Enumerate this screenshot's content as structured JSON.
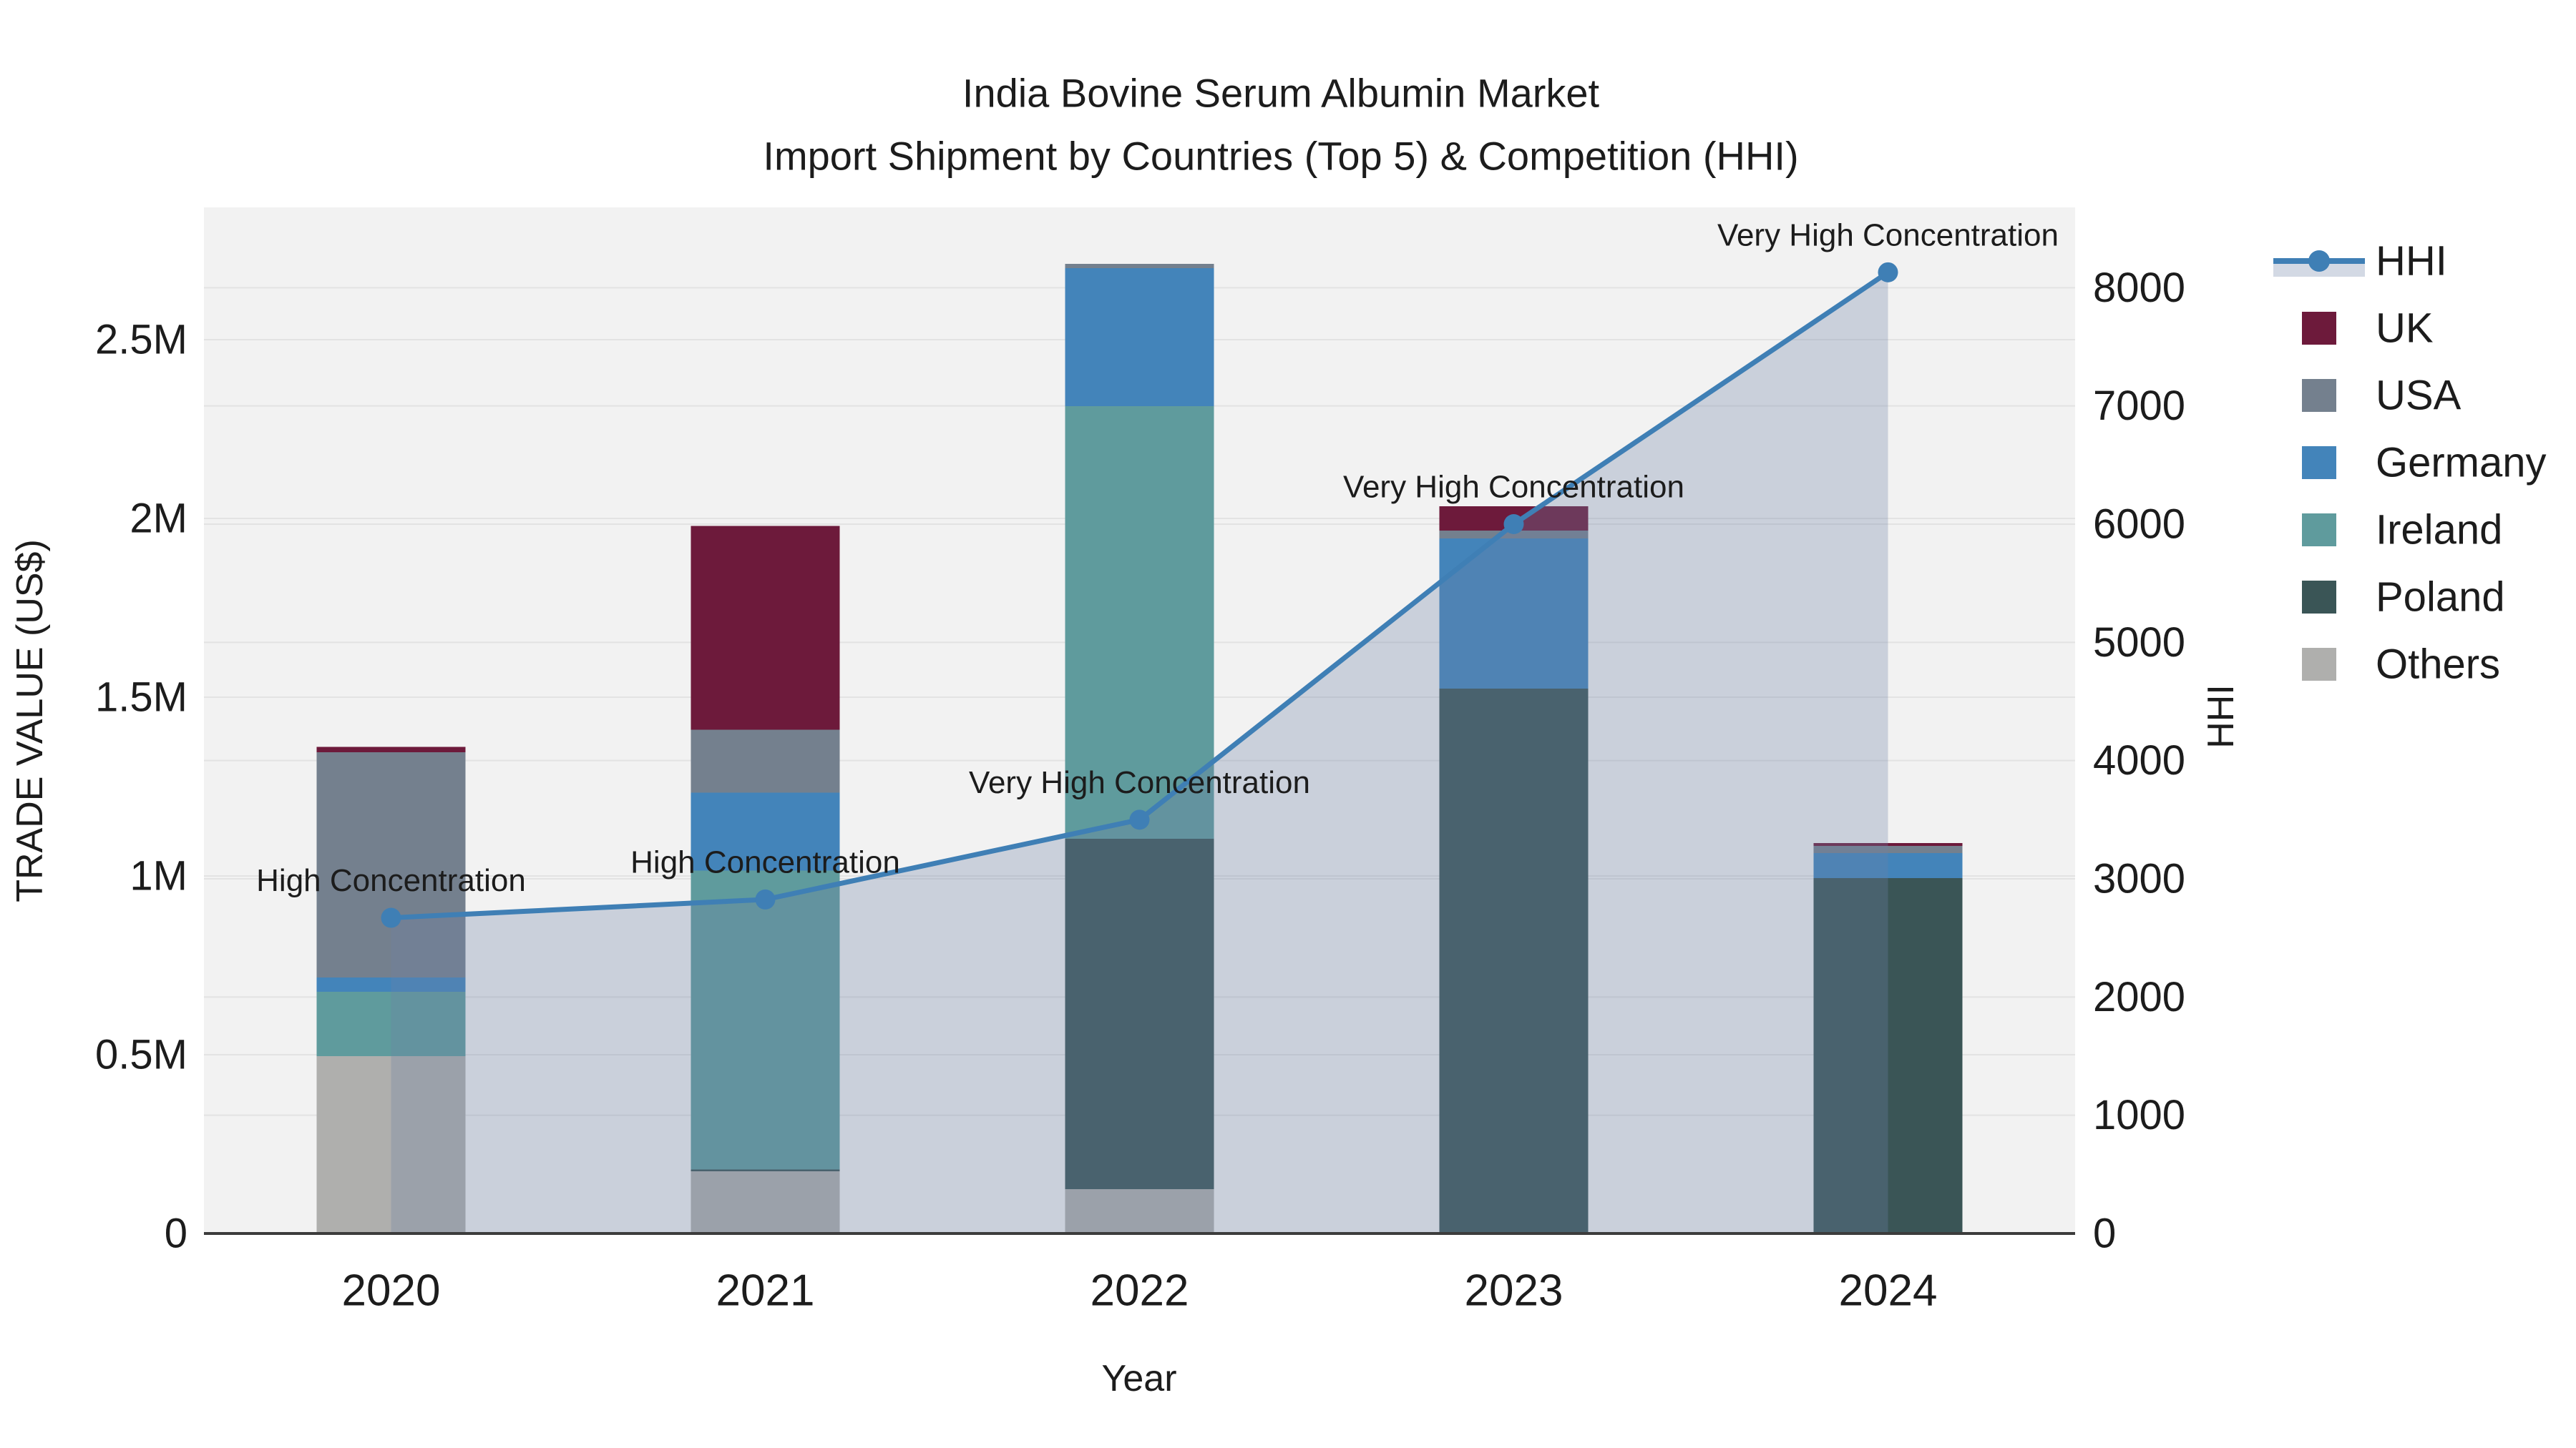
{
  "chart_data": {
    "type": "bar+line",
    "title_line1": "India Bovine Serum Albumin Market",
    "title_line2": "Import Shipment by Countries (Top 5) & Competition (HHI)",
    "xlabel": "Year",
    "ylabel_left": "TRADE VALUE (US$)",
    "ylabel_right": "HHI",
    "categories": [
      "2020",
      "2021",
      "2022",
      "2023",
      "2024"
    ],
    "bar_totals_musd": [
      1.36,
      1.98,
      2.71,
      2.03,
      1.09
    ],
    "series": [
      {
        "name": "UK",
        "color": "#6d1a3b",
        "values": [
          0.015,
          0.57,
          0.0,
          0.068,
          0.008
        ]
      },
      {
        "name": "USA",
        "color": "#74808e",
        "values": [
          0.63,
          0.176,
          0.012,
          0.022,
          0.02
        ]
      },
      {
        "name": "Germany",
        "color": "#4384ba",
        "values": [
          0.04,
          0.218,
          0.386,
          0.42,
          0.07
        ]
      },
      {
        "name": "Ireland",
        "color": "#5f9b9d",
        "values": [
          0.18,
          0.836,
          1.21,
          0.0,
          0.0
        ]
      },
      {
        "name": "Poland",
        "color": "#3a5556",
        "values": [
          0.0,
          0.005,
          0.98,
          1.524,
          0.994
        ]
      },
      {
        "name": "Others",
        "color": "#afafad",
        "values": [
          0.496,
          0.174,
          0.124,
          0.0,
          0.0
        ]
      }
    ],
    "stack_order_bottom_to_top": [
      "Others",
      "Poland",
      "Ireland",
      "Germany",
      "USA",
      "UK"
    ],
    "hhi_line": {
      "name": "HHI",
      "color": "#3f7fb5",
      "area_fill": "rgba(110,130,165,0.30)",
      "values": [
        2670,
        2825,
        3500,
        6000,
        8130
      ]
    },
    "annotations": [
      {
        "year": "2020",
        "label": "High Concentration"
      },
      {
        "year": "2021",
        "label": "High Concentration"
      },
      {
        "year": "2022",
        "label": "Very High Concentration"
      },
      {
        "year": "2023",
        "label": "Very High Concentration"
      },
      {
        "year": "2024",
        "label": "Very High Concentration"
      }
    ],
    "y_left_axis": {
      "ticks": [
        "0",
        "0.5M",
        "1M",
        "1.5M",
        "2M",
        "2.5M"
      ],
      "tick_values": [
        0,
        0.5,
        1,
        1.5,
        2,
        2.5
      ],
      "max": 2.87
    },
    "y_right_axis": {
      "ticks": [
        "0",
        "1000",
        "2000",
        "3000",
        "4000",
        "5000",
        "6000",
        "7000",
        "8000"
      ],
      "tick_values": [
        0,
        1000,
        2000,
        3000,
        4000,
        5000,
        6000,
        7000,
        8000
      ],
      "max": 8680
    },
    "legend_entries": [
      "HHI",
      "UK",
      "USA",
      "Germany",
      "Ireland",
      "Poland",
      "Others"
    ],
    "plot_bg_color": "#f2f2f2",
    "grid_color": "#e3e3e3",
    "axis_line_color": "#3c3c3c"
  }
}
